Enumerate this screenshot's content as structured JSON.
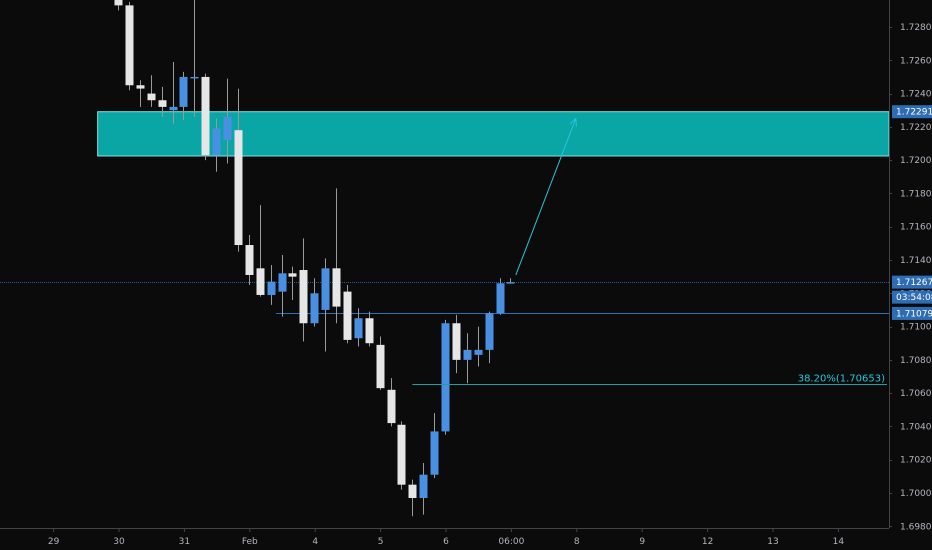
{
  "colors": {
    "background": "#0b0b0b",
    "bull": "#4a90e2",
    "bear": "#e6e6e6",
    "wick": "#9a9a9a",
    "zone_fill": "#0aa5a5",
    "zone_border": "#7fe3e3",
    "hline": "#2f6fb5",
    "fib_line": "#1ea0a0",
    "arrow": "#26c6da",
    "axis_text": "#b2b5be",
    "tag_bg": "#2e6db4",
    "grid_axis": "#444444"
  },
  "price_tags": [
    {
      "label": "1.72291",
      "price": 1.72291,
      "id": "zone-top"
    },
    {
      "label": "1.71267",
      "price": 1.71267,
      "id": "current"
    },
    {
      "label": "03:54:08",
      "price": 1.71187,
      "id": "countdown"
    },
    {
      "label": "1.71079",
      "price": 1.71079,
      "id": "level"
    }
  ],
  "chart_data": {
    "type": "candlestick",
    "y_axis": {
      "min": 1.6985,
      "max": 1.7308,
      "ticks": [
        "1.72800",
        "1.72600",
        "1.72400",
        "1.72200",
        "1.72000",
        "1.71800",
        "1.71600",
        "1.71400",
        "1.71200",
        "1.71000",
        "1.70800",
        "1.70600",
        "1.70400",
        "1.70200",
        "1.70000",
        "1.69800"
      ]
    },
    "x_axis": {
      "ticks": [
        {
          "label": "29",
          "bar": -6
        },
        {
          "label": "30",
          "bar": 0
        },
        {
          "label": "31",
          "bar": 6
        },
        {
          "label": "Feb",
          "bar": 12
        },
        {
          "label": "4",
          "bar": 18
        },
        {
          "label": "5",
          "bar": 24
        },
        {
          "label": "6",
          "bar": 30
        },
        {
          "label": "06:00",
          "bar": 36
        },
        {
          "label": "8",
          "bar": 42
        },
        {
          "label": "9",
          "bar": 48
        },
        {
          "label": "12",
          "bar": 54
        },
        {
          "label": "13",
          "bar": 60
        },
        {
          "label": "14",
          "bar": 66
        }
      ]
    },
    "candles": [
      {
        "o": 1.7303,
        "h": 1.7305,
        "l": 1.729,
        "c": 1.7293
      },
      {
        "o": 1.7293,
        "h": 1.7295,
        "l": 1.7242,
        "c": 1.7245
      },
      {
        "o": 1.7245,
        "h": 1.7248,
        "l": 1.7232,
        "c": 1.7243
      },
      {
        "o": 1.724,
        "h": 1.7251,
        "l": 1.7232,
        "c": 1.7236
      },
      {
        "o": 1.7236,
        "h": 1.7244,
        "l": 1.7226,
        "c": 1.7232
      },
      {
        "o": 1.723,
        "h": 1.7259,
        "l": 1.7222,
        "c": 1.7232
      },
      {
        "o": 1.7232,
        "h": 1.7253,
        "l": 1.7224,
        "c": 1.725
      },
      {
        "o": 1.725,
        "h": 1.7303,
        "l": 1.7226,
        "c": 1.725
      },
      {
        "o": 1.725,
        "h": 1.7252,
        "l": 1.72,
        "c": 1.7203
      },
      {
        "o": 1.7203,
        "h": 1.7225,
        "l": 1.7193,
        "c": 1.7219
      },
      {
        "o": 1.7212,
        "h": 1.7249,
        "l": 1.7198,
        "c": 1.7226
      },
      {
        "o": 1.7218,
        "h": 1.7243,
        "l": 1.7145,
        "c": 1.7149
      },
      {
        "o": 1.7149,
        "h": 1.7155,
        "l": 1.7125,
        "c": 1.7131
      },
      {
        "o": 1.7135,
        "h": 1.7173,
        "l": 1.7118,
        "c": 1.7119
      },
      {
        "o": 1.7119,
        "h": 1.7137,
        "l": 1.7113,
        "c": 1.7127
      },
      {
        "o": 1.7121,
        "h": 1.7143,
        "l": 1.7106,
        "c": 1.7132
      },
      {
        "o": 1.7132,
        "h": 1.7136,
        "l": 1.7116,
        "c": 1.713
      },
      {
        "o": 1.7134,
        "h": 1.7153,
        "l": 1.7091,
        "c": 1.7102
      },
      {
        "o": 1.7102,
        "h": 1.7129,
        "l": 1.71,
        "c": 1.712
      },
      {
        "o": 1.711,
        "h": 1.7141,
        "l": 1.7085,
        "c": 1.7135
      },
      {
        "o": 1.7135,
        "h": 1.7183,
        "l": 1.7102,
        "c": 1.7112
      },
      {
        "o": 1.7121,
        "h": 1.7125,
        "l": 1.709,
        "c": 1.7092
      },
      {
        "o": 1.7093,
        "h": 1.7111,
        "l": 1.7088,
        "c": 1.7105
      },
      {
        "o": 1.7105,
        "h": 1.7109,
        "l": 1.7088,
        "c": 1.709
      },
      {
        "o": 1.7089,
        "h": 1.7094,
        "l": 1.7062,
        "c": 1.7063
      },
      {
        "o": 1.7062,
        "h": 1.7069,
        "l": 1.704,
        "c": 1.7042
      },
      {
        "o": 1.7041,
        "h": 1.7043,
        "l": 1.7002,
        "c": 1.7005
      },
      {
        "o": 1.7005,
        "h": 1.7008,
        "l": 1.6986,
        "c": 1.6997
      },
      {
        "o": 1.6997,
        "h": 1.7018,
        "l": 1.6987,
        "c": 1.7011
      },
      {
        "o": 1.7011,
        "h": 1.7048,
        "l": 1.7009,
        "c": 1.7037
      },
      {
        "o": 1.7037,
        "h": 1.7104,
        "l": 1.7035,
        "c": 1.7102
      },
      {
        "o": 1.7102,
        "h": 1.7107,
        "l": 1.7072,
        "c": 1.708
      },
      {
        "o": 1.708,
        "h": 1.7096,
        "l": 1.7066,
        "c": 1.7086
      },
      {
        "o": 1.7083,
        "h": 1.71,
        "l": 1.7076,
        "c": 1.7086
      },
      {
        "o": 1.7086,
        "h": 1.7109,
        "l": 1.7078,
        "c": 1.7108
      },
      {
        "o": 1.7108,
        "h": 1.7129,
        "l": 1.7107,
        "c": 1.7126
      },
      {
        "o": 1.71267,
        "h": 1.7129,
        "l": 1.7126,
        "c": 1.71267
      }
    ],
    "annotations": {
      "zone": {
        "top": 1.72291,
        "bottom": 1.72025,
        "from_bar": -1.5,
        "to": "axis"
      },
      "hline_current": {
        "price": 1.71267,
        "style": "dotted-thin"
      },
      "hline_level": {
        "price": 1.71079,
        "from_bar": 14.5
      },
      "fib": {
        "price": 1.70653,
        "from_bar": 27,
        "label": "38.20%(1.70653)"
      },
      "arrow": {
        "from": {
          "bar": 36.5,
          "price": 1.7131
        },
        "to": {
          "bar": 42,
          "price": 1.7225
        }
      }
    }
  }
}
